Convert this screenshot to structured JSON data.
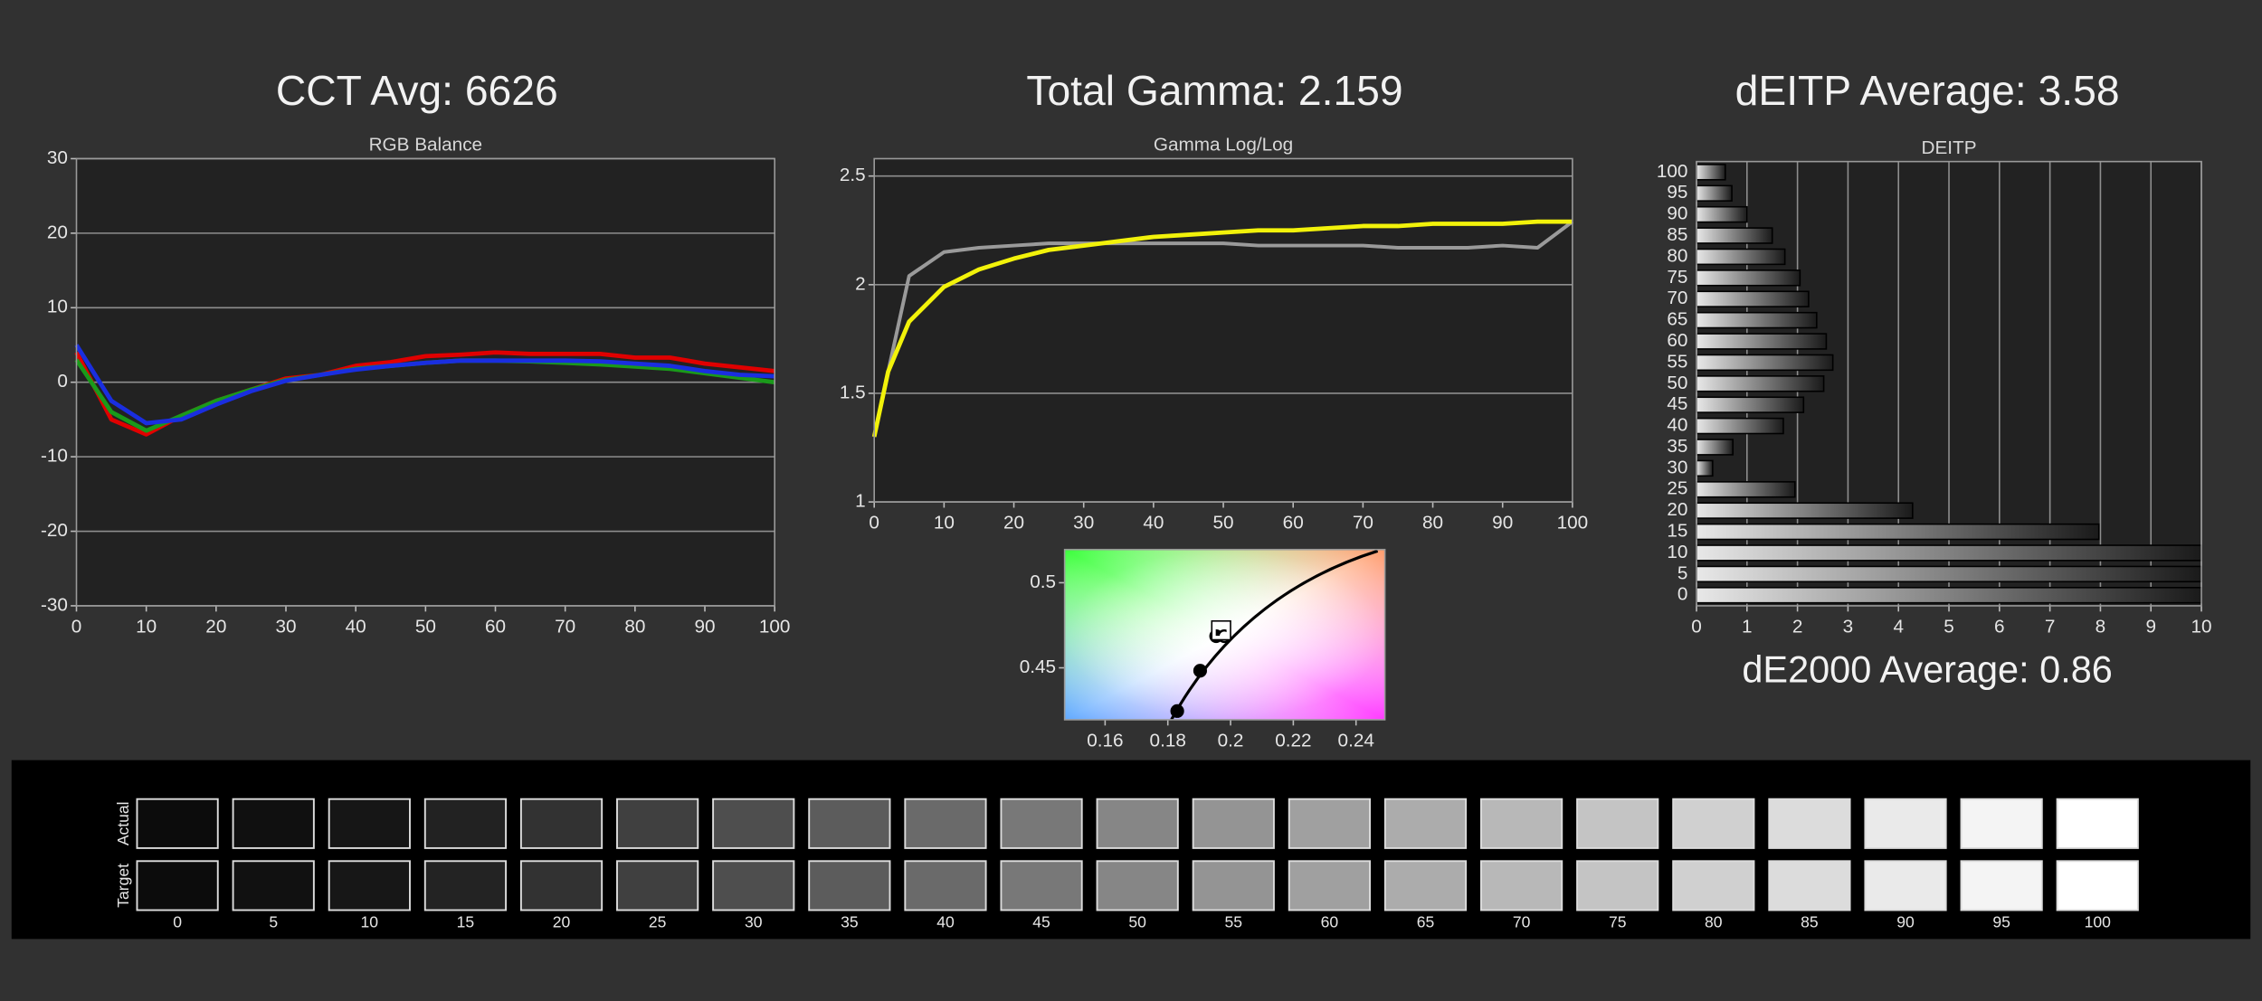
{
  "chart_data": [
    {
      "type": "line",
      "header": "CCT Avg: 6626",
      "title": "RGB Balance",
      "x": [
        0,
        5,
        10,
        15,
        20,
        25,
        30,
        35,
        40,
        45,
        50,
        55,
        60,
        65,
        70,
        75,
        80,
        85,
        90,
        95,
        100
      ],
      "series": [
        {
          "color": "#e00000",
          "values": [
            4,
            -5,
            -7,
            -4.5,
            -2.5,
            -1,
            0.5,
            1,
            2.2,
            2.7,
            3.5,
            3.7,
            4,
            3.8,
            3.8,
            3.8,
            3.3,
            3.3,
            2.5,
            2,
            1.5
          ]
        },
        {
          "color": "#1a9a1a",
          "values": [
            3,
            -4,
            -6.5,
            -4.5,
            -2.5,
            -1,
            0.3,
            1,
            1.8,
            2.2,
            2.6,
            2.9,
            2.9,
            2.8,
            2.6,
            2.4,
            2.1,
            1.8,
            1.2,
            0.6,
            0
          ]
        },
        {
          "color": "#1a2ee0",
          "values": [
            5,
            -2.5,
            -5.5,
            -5,
            -3,
            -1.2,
            0.2,
            1,
            1.7,
            2.2,
            2.6,
            2.9,
            2.9,
            2.9,
            2.9,
            2.8,
            2.5,
            2.2,
            1.5,
            1,
            0.8
          ]
        }
      ],
      "xlim": [
        0,
        100
      ],
      "xticks": [
        0,
        10,
        20,
        30,
        40,
        50,
        60,
        70,
        80,
        90,
        100
      ],
      "ylim": [
        -30,
        30
      ],
      "yticks": [
        -30,
        -20,
        -10,
        0,
        10,
        20,
        30
      ],
      "grid": true
    },
    {
      "type": "line",
      "header": "Total Gamma: 2.159",
      "title": "Gamma Log/Log",
      "x": [
        0,
        2,
        5,
        10,
        15,
        20,
        25,
        30,
        35,
        40,
        45,
        50,
        55,
        60,
        65,
        70,
        75,
        80,
        85,
        90,
        95,
        100
      ],
      "series": [
        {
          "color": "#9a9a9a",
          "values": [
            1.3,
            1.6,
            2.04,
            2.15,
            2.17,
            2.18,
            2.19,
            2.19,
            2.19,
            2.19,
            2.19,
            2.19,
            2.18,
            2.18,
            2.18,
            2.18,
            2.17,
            2.17,
            2.17,
            2.18,
            2.17,
            2.29
          ]
        },
        {
          "color": "#f2f20a",
          "values": [
            1.3,
            1.6,
            1.83,
            1.99,
            2.07,
            2.12,
            2.16,
            2.18,
            2.2,
            2.22,
            2.23,
            2.24,
            2.25,
            2.25,
            2.26,
            2.27,
            2.27,
            2.28,
            2.28,
            2.28,
            2.29,
            2.29
          ]
        }
      ],
      "xlim": [
        0,
        100
      ],
      "xticks": [
        0,
        10,
        20,
        30,
        40,
        50,
        60,
        70,
        80,
        90,
        100
      ],
      "ylim": [
        1,
        2.58
      ],
      "yticks": [
        1,
        1.5,
        2,
        2.5
      ],
      "grid": true
    },
    {
      "type": "scatter",
      "series": [
        {
          "color": "#000000",
          "marker": "circle",
          "x": [
            0.183,
            0.1903,
            0.1954
          ],
          "values": [
            0.4246,
            0.4483,
            0.4686
          ]
        },
        {
          "color": "#ffffff",
          "marker": "circle",
          "x": [
            0.198
          ],
          "values": [
            0.4686
          ]
        },
        {
          "color": "#ffffff",
          "marker": "square",
          "x": [
            0.197
          ],
          "values": [
            0.472
          ]
        }
      ],
      "xlim": [
        0.1471,
        0.2492
      ],
      "xticks": [
        0.16,
        0.18,
        0.2,
        0.22,
        0.24
      ],
      "ylim": [
        0.4195,
        0.5195
      ],
      "yticks": [
        0.45,
        0.5
      ],
      "grid": false
    },
    {
      "type": "bar",
      "orientation": "horizontal",
      "header": "dEITP Average: 3.58",
      "title": "DEITP",
      "footer": "dE2000 Average: 0.86",
      "categories": [
        "0",
        "5",
        "10",
        "15",
        "20",
        "25",
        "30",
        "35",
        "40",
        "45",
        "50",
        "55",
        "60",
        "65",
        "70",
        "75",
        "80",
        "85",
        "90",
        "95",
        "100"
      ],
      "values": [
        10,
        10,
        10,
        7.97,
        4.28,
        1.95,
        0.32,
        0.72,
        1.72,
        2.12,
        2.52,
        2.7,
        2.57,
        2.38,
        2.22,
        2.05,
        1.75,
        1.5,
        1.0,
        0.7,
        0.57
      ],
      "color": "#e8e8e8",
      "xlim": [
        0,
        10
      ],
      "xticks": [
        0,
        1,
        2,
        3,
        4,
        5,
        6,
        7,
        8,
        9,
        10
      ],
      "grid": true
    }
  ],
  "grayscale": {
    "row_labels": [
      "Actual",
      "Target"
    ],
    "levels": [
      "0",
      "5",
      "10",
      "15",
      "20",
      "25",
      "30",
      "35",
      "40",
      "45",
      "50",
      "55",
      "60",
      "65",
      "70",
      "75",
      "80",
      "85",
      "90",
      "95",
      "100"
    ],
    "colors": [
      [
        "#0c0c0c",
        "#101010",
        "#161616",
        "#222222",
        "#323232",
        "#404040",
        "#4e4e4e",
        "#5c5c5c",
        "#6a6a6a",
        "#787878",
        "#868686",
        "#949494",
        "#a0a0a0",
        "#acacac",
        "#b8b8b8",
        "#c4c4c4",
        "#d0d0d0",
        "#dcdcdc",
        "#eaeaea",
        "#f4f4f4",
        "#ffffff"
      ],
      [
        "#0c0c0c",
        "#111111",
        "#171717",
        "#232323",
        "#323232",
        "#404040",
        "#4e4e4e",
        "#5c5c5c",
        "#6a6a6a",
        "#787878",
        "#868686",
        "#949494",
        "#a0a0a0",
        "#acacac",
        "#b8b8b8",
        "#c4c4c4",
        "#d0d0d0",
        "#dcdcdc",
        "#eaeaea",
        "#f4f4f4",
        "#ffffff"
      ]
    ]
  }
}
